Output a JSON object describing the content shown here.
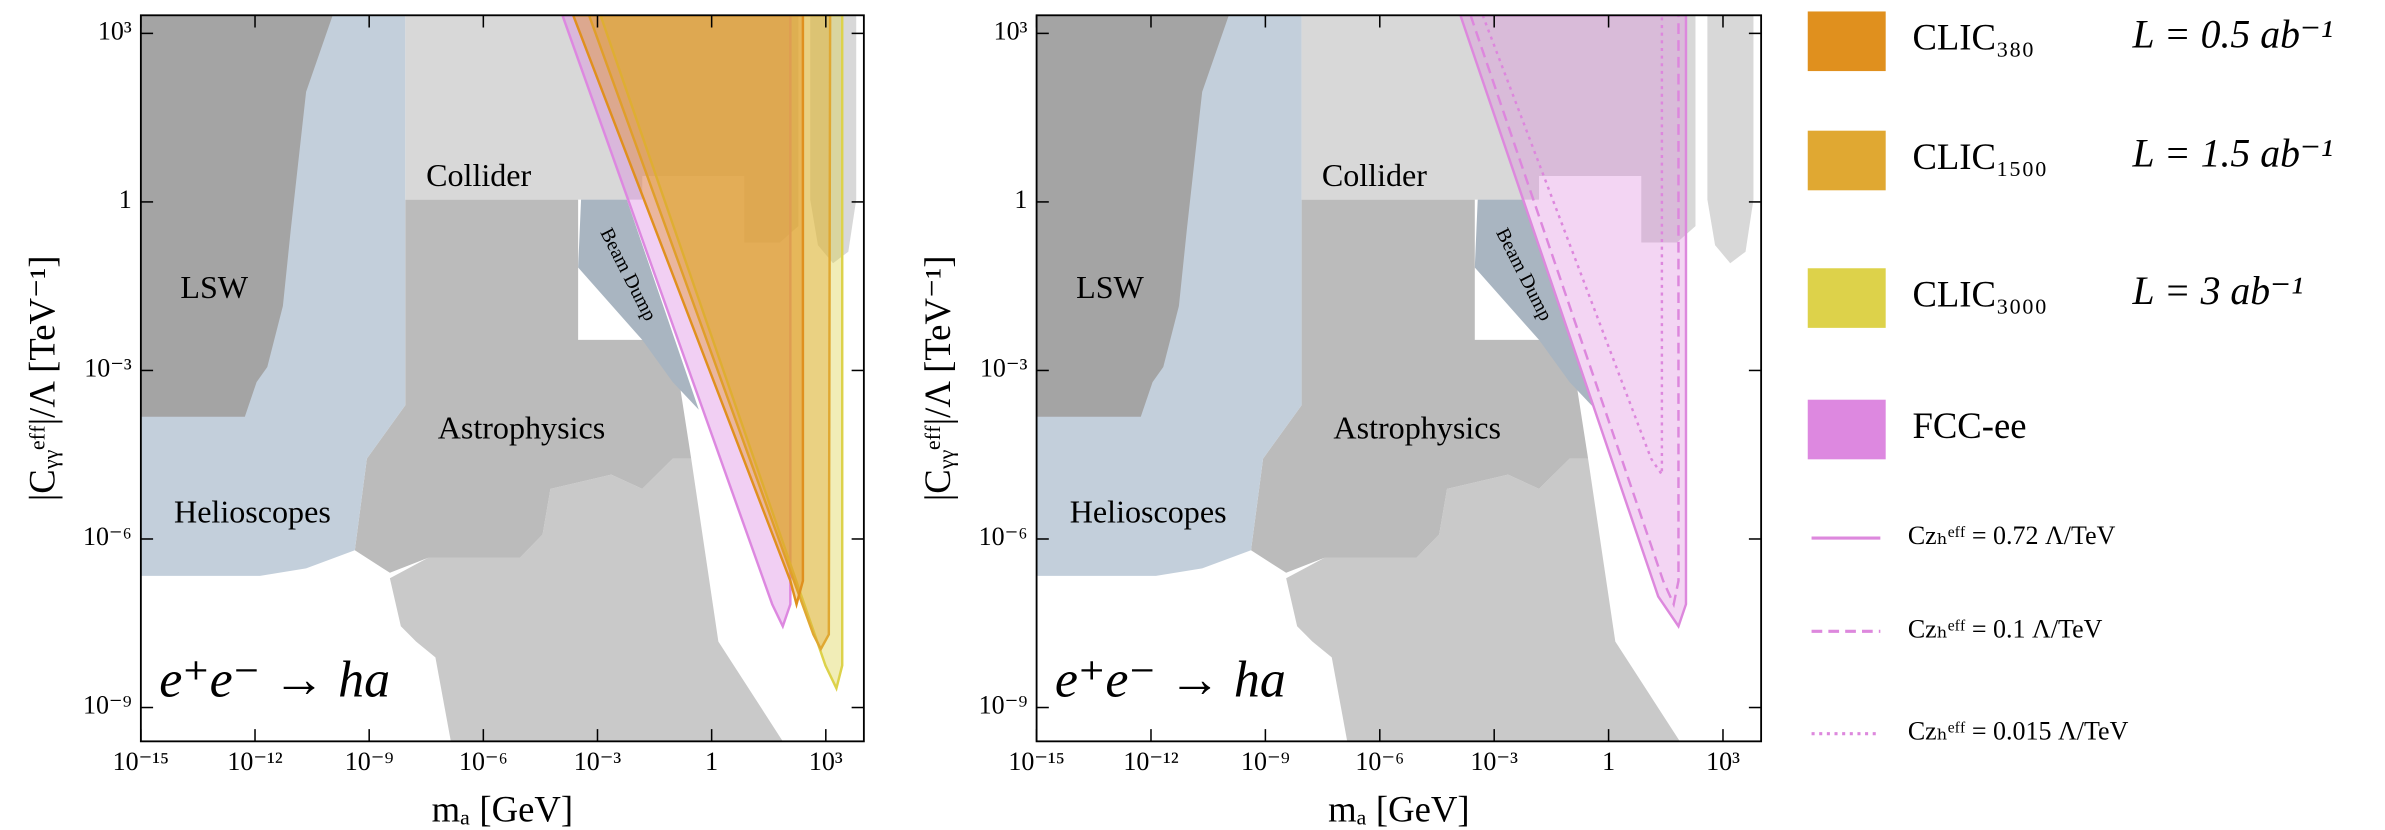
{
  "chart_data": [
    {
      "type": "area",
      "log_x": true,
      "log_y": true,
      "x_label": "mₐ [GeV]",
      "y_label": "|Cᵧᵧᵉᶠᶠ|/Λ [TeV⁻¹]",
      "xlim": [
        1e-15,
        10000.0
      ],
      "ylim": [
        2.5e-10,
        2100.0
      ],
      "xticks": [
        {
          "value": 1e-15,
          "label": "10⁻¹⁵"
        },
        {
          "value": 1e-12,
          "label": "10⁻¹²"
        },
        {
          "value": 1e-09,
          "label": "10⁻⁹"
        },
        {
          "value": 1e-06,
          "label": "10⁻⁶"
        },
        {
          "value": 0.001,
          "label": "10⁻³"
        },
        1,
        {
          "value": 1000.0,
          "label": "10³"
        }
      ],
      "yticks": [
        {
          "value": 1e-09,
          "label": "10⁻⁹"
        },
        {
          "value": 1e-06,
          "label": "10⁻⁶"
        },
        {
          "value": 0.001,
          "label": "10⁻³"
        },
        1,
        {
          "value": 1000.0,
          "label": "10³"
        }
      ],
      "annotation": "e⁺e⁻ → ha",
      "fill_opacity": 0.4,
      "legend": "outside right",
      "regions": [
        {
          "color": "#c9c9c9",
          "x": [
            3.5e-09,
            6.8e-09,
            1.7e-08,
            5.5e-08,
            1.4e-07,
            74,
            1.5,
            0.29,
            0.095,
            0.015,
            0.0023,
            5.8e-05,
            3.6e-05,
            9.1e-06,
            3.5e-08
          ],
          "values": [
            2e-07,
            2.8e-08,
            1.5e-08,
            7.8e-09,
            2.5e-10,
            2.5e-10,
            1.5e-08,
            2.7e-05,
            2.7e-05,
            7.8e-06,
            1.4e-05,
            7.8e-06,
            1.2e-06,
            4.6e-07,
            4.6e-07
          ]
        },
        {
          "label": "Astrophysics",
          "color": "#bbbbbb",
          "x": [
            8.9e-09,
            0.00031,
            0.00031,
            0.095,
            0.29,
            0.095,
            0.015,
            0.0023,
            5.8e-05,
            3.6e-05,
            9.1e-06,
            3.5e-08,
            3.5e-09,
            4.2e-10,
            8.7e-10,
            8.9e-09
          ],
          "values": [
            1.1,
            1.1,
            0.0035,
            0.0035,
            2.7e-05,
            2.7e-05,
            7.8e-06,
            1.4e-05,
            7.8e-06,
            1.2e-06,
            4.6e-07,
            4.6e-07,
            2.5e-07,
            6.3e-07,
            2.7e-05,
            0.00024
          ]
        },
        {
          "label": "Helioscopes",
          "color": "#c3cfdb",
          "x": [
            1e-15,
            8.9e-09,
            8.9e-09,
            8.7e-10,
            4.2e-10,
            2.2e-11,
            1.35e-12,
            1e-15
          ],
          "values": [
            2100.0,
            2100.0,
            0.00024,
            2.7e-05,
            6.3e-07,
            3e-07,
            2.2e-07,
            2.2e-07
          ]
        },
        {
          "label": "LSW",
          "color": "#a4a4a4",
          "x": [
            1e-15,
            1.1e-10,
            2.2e-11,
            8.7e-12,
            5.4e-12,
            2.1e-12,
            1.1e-12,
            5.4e-13,
            1e-15
          ],
          "values": [
            2100.0,
            2100.0,
            91,
            0.32,
            0.014,
            0.00115,
            0.00062,
            0.00015,
            0.00015
          ]
        },
        {
          "label": "Collider",
          "color": "#d8d8d8",
          "x": [
            8.9e-09,
            190,
            190,
            62,
            7.2,
            7.2,
            0.015,
            0.015,
            8.9e-09
          ],
          "values": [
            2100.0,
            2100.0,
            0.37,
            0.19,
            0.19,
            2.9,
            2.9,
            1.1,
            1.1
          ]
        },
        {
          "color": "#d8d8d8",
          "x": [
            390,
            6300,
            6300,
            3900,
            1550,
            620,
            390
          ],
          "values": [
            2100.0,
            2100.0,
            1.1,
            0.13,
            0.081,
            0.17,
            1.1
          ]
        },
        {
          "label": "Beam Dump",
          "color": "#a9b5c1",
          "x": [
            0.00037,
            0.0059,
            0.46,
            0.095,
            0.015,
            0.00031
          ],
          "values": [
            1.1,
            1.1,
            0.0002,
            0.00062,
            0.0035,
            0.068
          ]
        }
      ],
      "series": [
        {
          "name": "CLIC₃₈₀",
          "luminosity": "L = 0.5 ab⁻¹",
          "color": "#e0901e",
          "x": [
            0.00023,
            117,
            170,
            250,
            250
          ],
          "values": [
            2100.0,
            1.8e-07,
            6.9e-08,
            1.8e-07,
            2100.0
          ]
        },
        {
          "name": "CLIC₁₅₀₀",
          "luminosity": "L = 1.5 ab⁻¹",
          "color": "#e0a832",
          "x": [
            0.0006,
            470,
            740,
            1200,
            1300
          ],
          "values": [
            2100.0,
            2e-08,
            1.1e-08,
            2e-08,
            2100.0
          ]
        },
        {
          "name": "CLIC₃₀₀₀",
          "luminosity": "L = 3 ab⁻¹",
          "color": "#ddd24a",
          "x": [
            0.0012,
            980,
            1900,
            2700,
            2700
          ],
          "values": [
            2100.0,
            5.6e-09,
            2.2e-09,
            5.6e-09,
            2100.0
          ]
        },
        {
          "name": "FCC-ee",
          "color": "#dd88e0",
          "x": [
            0.00012,
            39,
            74,
            117,
            117
          ],
          "values": [
            2100.0,
            6.9e-08,
            2.8e-08,
            6.9e-08,
            2100.0
          ]
        }
      ]
    },
    {
      "type": "area",
      "log_x": true,
      "log_y": true,
      "x_label": "mₐ [GeV]",
      "y_label": "|Cᵧᵧᵉᶠᶠ|/Λ [TeV⁻¹]",
      "xlim": [
        1e-15,
        10000.0
      ],
      "ylim": [
        2.5e-10,
        2100.0
      ],
      "xticks": [
        {
          "value": 1e-15,
          "label": "10⁻¹⁵"
        },
        {
          "value": 1e-12,
          "label": "10⁻¹²"
        },
        {
          "value": 1e-09,
          "label": "10⁻⁹"
        },
        {
          "value": 1e-06,
          "label": "10⁻⁶"
        },
        {
          "value": 0.001,
          "label": "10⁻³"
        },
        1,
        {
          "value": 1000.0,
          "label": "10³"
        }
      ],
      "yticks": [
        {
          "value": 1e-09,
          "label": "10⁻⁹"
        },
        {
          "value": 1e-06,
          "label": "10⁻⁶"
        },
        {
          "value": 0.001,
          "label": "10⁻³"
        },
        1,
        {
          "value": 1000.0,
          "label": "10³"
        }
      ],
      "annotation": "e⁺e⁻ → ha",
      "fill_opacity": 0.35,
      "regions": [
        {
          "color": "#c9c9c9",
          "x": [
            3.5e-09,
            6.8e-09,
            1.7e-08,
            5.5e-08,
            1.4e-07,
            74,
            1.5,
            0.29,
            0.095,
            0.015,
            0.0023,
            5.8e-05,
            3.6e-05,
            9.1e-06,
            3.5e-08
          ],
          "values": [
            2e-07,
            2.8e-08,
            1.5e-08,
            7.8e-09,
            2.5e-10,
            2.5e-10,
            1.5e-08,
            2.7e-05,
            2.7e-05,
            7.8e-06,
            1.4e-05,
            7.8e-06,
            1.2e-06,
            4.6e-07,
            4.6e-07
          ]
        },
        {
          "label": "Astrophysics",
          "color": "#bbbbbb",
          "x": [
            8.9e-09,
            0.00031,
            0.00031,
            0.095,
            0.29,
            0.095,
            0.015,
            0.0023,
            5.8e-05,
            3.6e-05,
            9.1e-06,
            3.5e-08,
            3.5e-09,
            4.2e-10,
            8.7e-10,
            8.9e-09
          ],
          "values": [
            1.1,
            1.1,
            0.0035,
            0.0035,
            2.7e-05,
            2.7e-05,
            7.8e-06,
            1.4e-05,
            7.8e-06,
            1.2e-06,
            4.6e-07,
            4.6e-07,
            2.5e-07,
            6.3e-07,
            2.7e-05,
            0.00024
          ]
        },
        {
          "label": "Helioscopes",
          "color": "#c3cfdb",
          "x": [
            1e-15,
            8.9e-09,
            8.9e-09,
            8.7e-10,
            4.2e-10,
            2.2e-11,
            1.35e-12,
            1e-15
          ],
          "values": [
            2100.0,
            2100.0,
            0.00024,
            2.7e-05,
            6.3e-07,
            3e-07,
            2.2e-07,
            2.2e-07
          ]
        },
        {
          "label": "LSW",
          "color": "#a4a4a4",
          "x": [
            1e-15,
            1.1e-10,
            2.2e-11,
            8.7e-12,
            5.4e-12,
            2.1e-12,
            1.1e-12,
            5.4e-13,
            1e-15
          ],
          "values": [
            2100.0,
            2100.0,
            91,
            0.32,
            0.014,
            0.00115,
            0.00062,
            0.00015,
            0.00015
          ]
        },
        {
          "label": "Collider",
          "color": "#d8d8d8",
          "x": [
            8.9e-09,
            190,
            190,
            62,
            7.2,
            7.2,
            0.015,
            0.015,
            8.9e-09
          ],
          "values": [
            2100.0,
            2100.0,
            0.37,
            0.19,
            0.19,
            2.9,
            2.9,
            1.1,
            1.1
          ]
        },
        {
          "color": "#d8d8d8",
          "x": [
            390,
            6300,
            6300,
            3900,
            1550,
            620,
            390
          ],
          "values": [
            2100.0,
            2100.0,
            1.1,
            0.13,
            0.081,
            0.17,
            1.1
          ]
        },
        {
          "label": "Beam Dump",
          "color": "#a9b5c1",
          "x": [
            0.00037,
            0.0059,
            0.46,
            0.095,
            0.015,
            0.00031
          ],
          "values": [
            1.1,
            1.1,
            0.0002,
            0.00062,
            0.0035,
            0.068
          ]
        }
      ],
      "series": [
        {
          "name": "Cᴢₕᵉᶠᶠ = 0.72 Λ/TeV",
          "color": "#dd88dd",
          "dash": "solid",
          "filled": true,
          "x": [
            0.00013,
            20,
            68,
            107,
            107
          ],
          "values": [
            2100.0,
            9.5e-08,
            2.8e-08,
            6.9e-08,
            2100.0
          ]
        },
        {
          "name": "Cᴢₕᵉᶠᶠ = 0.1 Λ/TeV",
          "color": "#dd88dd",
          "dash": "dashed",
          "filled": false,
          "x": [
            0.00024,
            27,
            51,
            68,
            68
          ],
          "values": [
            2100.0,
            1.8e-07,
            6.9e-08,
            1.8e-07,
            2100.0
          ]
        },
        {
          "name": "Cᴢₕᵉᶠᶠ = 0.015 Λ/TeV",
          "color": "#dd88dd",
          "dash": "dotted",
          "filled": false,
          "x": [
            0.0005,
            13,
            25,
            25
          ],
          "values": [
            2100.0,
            2.7e-05,
            1.4e-05,
            2100.0
          ]
        }
      ]
    }
  ]
}
